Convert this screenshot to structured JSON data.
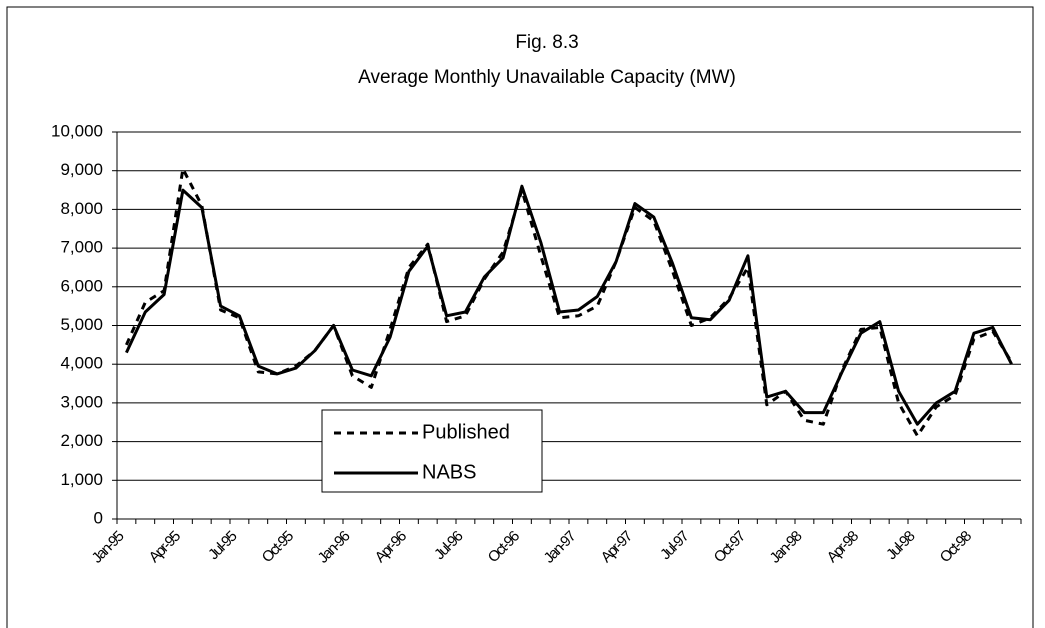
{
  "chart_data": {
    "type": "line",
    "title": "Fig. 8.3",
    "subtitle": "Average Monthly Unavailable Capacity (MW)",
    "categories": [
      "Jan-95",
      null,
      null,
      "Apr-95",
      null,
      null,
      "Jul-95",
      null,
      null,
      "Oct-95",
      null,
      null,
      "Jan-96",
      null,
      null,
      "Apr-96",
      null,
      null,
      "Jul-96",
      null,
      null,
      "Oct-96",
      null,
      null,
      "Jan-97",
      null,
      null,
      "Apr-97",
      null,
      null,
      "Jul-97",
      null,
      null,
      "Oct-97",
      null,
      null,
      "Jan-98",
      null,
      null,
      "Apr-98",
      null,
      null,
      "Jul-98",
      null,
      null,
      "Oct-98",
      null,
      null
    ],
    "series": [
      {
        "name": "Published",
        "color": "#000000",
        "line_style": "dashed",
        "values": [
          4500,
          5600,
          5900,
          9050,
          8100,
          5400,
          5200,
          3800,
          3750,
          3950,
          4350,
          5000,
          3700,
          3400,
          4900,
          6500,
          7100,
          5100,
          5250,
          6200,
          6900,
          8500,
          6800,
          5200,
          5250,
          5500,
          6650,
          8050,
          7700,
          6400,
          5000,
          5200,
          5700,
          6500,
          2950,
          3300,
          2550,
          2450,
          3850,
          4900,
          4950,
          3000,
          2150,
          2900,
          3200,
          4650,
          4850,
          4050
        ]
      },
      {
        "name": "NABS",
        "color": "#000000",
        "line_style": "solid",
        "values": [
          4300,
          5350,
          5800,
          8500,
          8050,
          5500,
          5250,
          3950,
          3750,
          3900,
          4350,
          5000,
          3850,
          3700,
          4700,
          6400,
          7050,
          5250,
          5350,
          6250,
          6750,
          8600,
          7150,
          5350,
          5400,
          5750,
          6650,
          8150,
          7800,
          6600,
          5200,
          5150,
          5650,
          6800,
          3150,
          3300,
          2750,
          2750,
          3800,
          4800,
          5100,
          3300,
          2450,
          3000,
          3300,
          4800,
          4950,
          4000
        ]
      }
    ],
    "ylim": [
      0,
      10000
    ],
    "yticks": [
      0,
      {
        "value": 1000,
        "label": "1,000"
      },
      {
        "value": 2000,
        "label": "2,000"
      },
      {
        "value": 3000,
        "label": "3,000"
      },
      {
        "value": 4000,
        "label": "4,000"
      },
      {
        "value": 5000,
        "label": "5,000"
      },
      {
        "value": 6000,
        "label": "6,000"
      },
      {
        "value": 7000,
        "label": "7,000"
      },
      {
        "value": 8000,
        "label": "8,000"
      },
      {
        "value": 9000,
        "label": "9,000"
      },
      {
        "value": 10000,
        "label": "10,000"
      }
    ],
    "grid": true,
    "legend": "lower left"
  }
}
